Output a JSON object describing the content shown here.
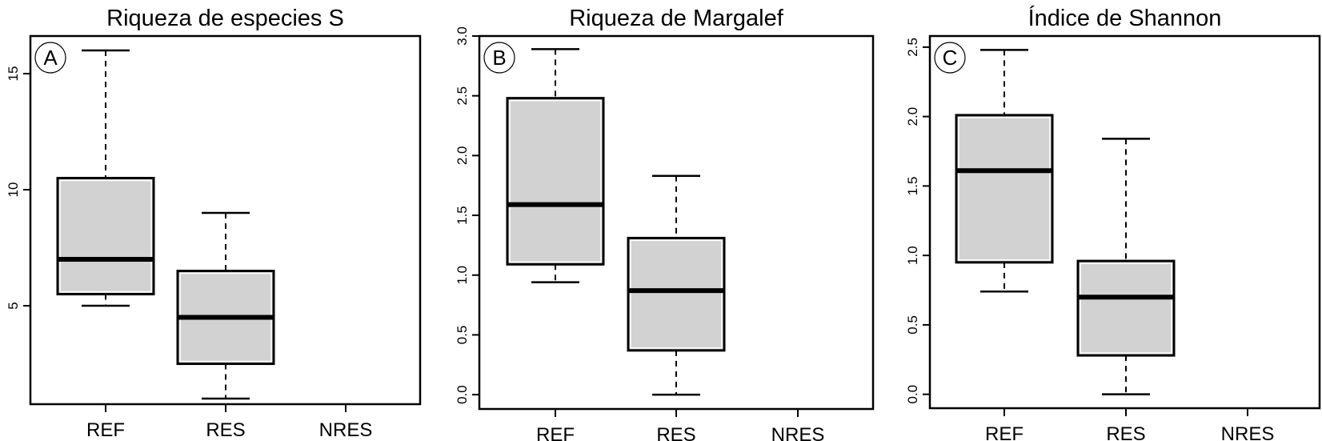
{
  "chart_data": [
    {
      "type": "box",
      "panel_label": "A",
      "title": "Riqueza de especies S",
      "categories": [
        "REF",
        "RES",
        "NRES"
      ],
      "yticks": [
        5,
        10,
        15
      ],
      "ytick_labels": [
        "5",
        "10",
        "15"
      ],
      "ylim": [
        0.76,
        16.62
      ],
      "boxes": [
        {
          "category": "REF",
          "min": 5,
          "q1": 5.5,
          "median": 7,
          "q3": 10.5,
          "max": 16
        },
        {
          "category": "RES",
          "min": 1,
          "q1": 2.5,
          "median": 4.5,
          "q3": 6.5,
          "max": 9
        },
        {
          "category": "NRES"
        }
      ]
    },
    {
      "type": "box",
      "panel_label": "B",
      "title": "Riqueza de Margalef",
      "categories": [
        "REF",
        "RES",
        "NRES"
      ],
      "yticks": [
        0,
        0.5,
        1,
        1.5,
        2,
        2.5,
        3
      ],
      "ytick_labels": [
        "0.0",
        "0.5",
        "1.0",
        "1.5",
        "2.0",
        "2.5",
        "3.0"
      ],
      "ylim": [
        -0.12,
        3.0
      ],
      "boxes": [
        {
          "category": "REF",
          "min": 0.94,
          "q1": 1.09,
          "median": 1.59,
          "q3": 2.48,
          "max": 2.89
        },
        {
          "category": "RES",
          "min": 0,
          "q1": 0.37,
          "median": 0.87,
          "q3": 1.31,
          "max": 1.83
        },
        {
          "category": "NRES"
        }
      ]
    },
    {
      "type": "box",
      "panel_label": "C",
      "title": "Índice de Shannon",
      "categories": [
        "REF",
        "RES",
        "NRES"
      ],
      "yticks": [
        0,
        0.5,
        1,
        1.5,
        2,
        2.5
      ],
      "ytick_labels": [
        "0.0",
        "0.5",
        "1.0",
        "1.5",
        "2.0",
        "2.5"
      ],
      "ylim": [
        -0.1,
        2.58
      ],
      "boxes": [
        {
          "category": "REF",
          "min": 0.74,
          "q1": 0.95,
          "median": 1.61,
          "q3": 2.01,
          "max": 2.48
        },
        {
          "category": "RES",
          "min": 0,
          "q1": 0.28,
          "median": 0.7,
          "q3": 0.96,
          "max": 1.84
        },
        {
          "category": "NRES"
        }
      ]
    }
  ],
  "colors": {
    "box_fill": "#d2d2d2",
    "line": "#000000"
  }
}
